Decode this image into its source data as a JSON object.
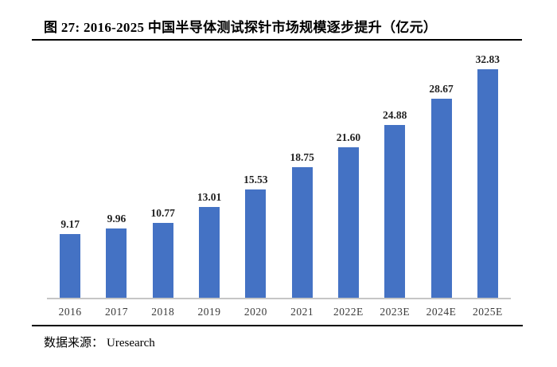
{
  "figure": {
    "title": "图 27: 2016-2025 中国半导体测试探针市场规模逐步提升（亿元）",
    "source_label": "数据来源：",
    "source_value": "Uresearch"
  },
  "chart_data": {
    "type": "bar",
    "title": "图 27: 2016-2025 中国半导体测试探针市场规模逐步提升（亿元）",
    "categories": [
      "2016",
      "2017",
      "2018",
      "2019",
      "2020",
      "2021",
      "2022E",
      "2023E",
      "2024E",
      "2025E"
    ],
    "values": [
      9.17,
      9.96,
      10.77,
      13.01,
      15.53,
      18.75,
      21.6,
      24.88,
      28.67,
      32.83
    ],
    "value_labels": [
      "9.17",
      "9.96",
      "10.77",
      "13.01",
      "15.53",
      "18.75",
      "21.60",
      "24.88",
      "28.67",
      "32.83"
    ],
    "xlabel": "",
    "ylabel": "",
    "ylim": [
      0,
      37
    ],
    "grid": false,
    "legend": "none",
    "bar_color": "#4472C4",
    "axis_line_color": "#c6c6c6",
    "value_label_color": "#1f1f1f",
    "tick_label_color": "#3a3a3a"
  }
}
